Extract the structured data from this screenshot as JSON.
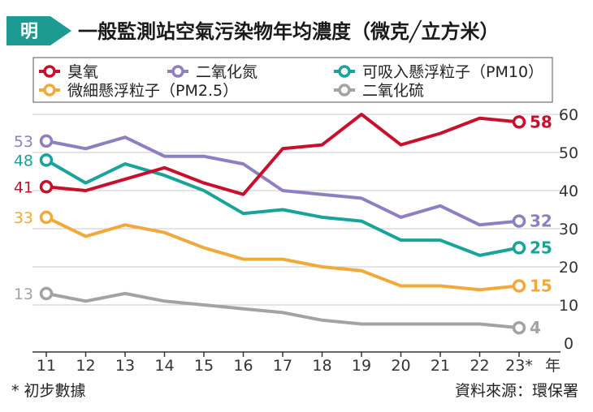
{
  "header": {
    "logo_char": "明",
    "title": "一般監測站空氣污染物年均濃度（微克╱立方米）"
  },
  "footer": {
    "note": "* 初步數據",
    "source": "資料來源：環保署"
  },
  "chart_data": {
    "type": "line",
    "title": "一般監測站空氣污染物年均濃度（微克╱立方米）",
    "x_unit": "年",
    "categories": [
      "11",
      "12",
      "13",
      "14",
      "15",
      "16",
      "17",
      "18",
      "19",
      "20",
      "21",
      "22",
      "23*"
    ],
    "ylim": [
      0,
      60
    ],
    "yticks": [
      0,
      10,
      20,
      30,
      40,
      50,
      60
    ],
    "ytick_labels": [
      "0",
      "10",
      "20",
      "30",
      "40",
      "50",
      "60"
    ],
    "y_axis_position": "right",
    "grid": true,
    "legend_placement": "top",
    "series": [
      {
        "name": "臭氧",
        "color": "#c8102e",
        "values": [
          41,
          40,
          43,
          46,
          42,
          39,
          51,
          52,
          60,
          52,
          55,
          59,
          58
        ],
        "start_label": "41",
        "end_label": "58"
      },
      {
        "name": "二氧化氮",
        "color": "#8f7fc1",
        "values": [
          53,
          51,
          54,
          49,
          49,
          47,
          40,
          39,
          38,
          33,
          36,
          31,
          32
        ],
        "start_label": "53",
        "end_label": "32"
      },
      {
        "name": "可吸入懸浮粒子（PM10）",
        "color": "#1aa39a",
        "values": [
          48,
          42,
          47,
          44,
          40,
          34,
          35,
          33,
          32,
          27,
          27,
          23,
          25
        ],
        "start_label": "48",
        "end_label": "25"
      },
      {
        "name": "微細懸浮粒子（PM2.5）",
        "color": "#f2a93b",
        "values": [
          33,
          28,
          31,
          29,
          25,
          22,
          22,
          20,
          19,
          15,
          15,
          14,
          15
        ],
        "start_label": "33",
        "end_label": "15"
      },
      {
        "name": "二氧化硫",
        "color": "#a3a3a3",
        "values": [
          13,
          11,
          13,
          11,
          10,
          9,
          8,
          6,
          5,
          5,
          5,
          5,
          4
        ],
        "start_label": "13",
        "end_label": "4"
      }
    ]
  }
}
